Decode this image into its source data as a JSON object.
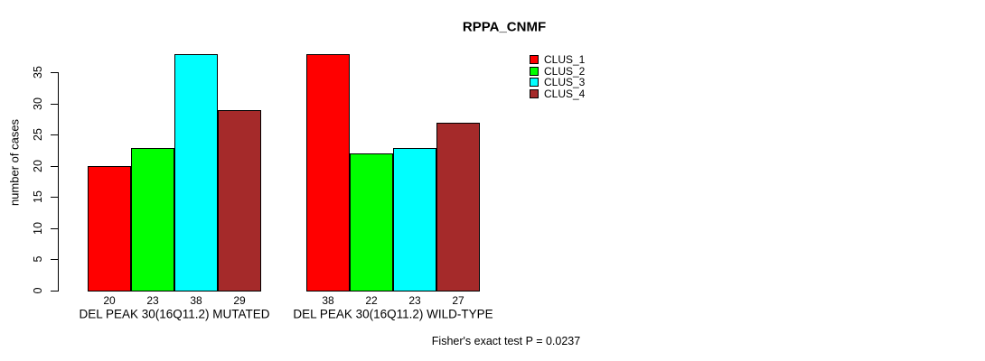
{
  "chart_data": {
    "type": "bar",
    "title": "RPPA_CNMF",
    "ylabel": "number of cases",
    "xlabel": "",
    "ylim": [
      0,
      38
    ],
    "yticks": [
      0,
      5,
      10,
      15,
      20,
      25,
      30,
      35
    ],
    "grid": false,
    "legend_position": "top-right",
    "bar_value_labels_shown": true,
    "categories": [
      "DEL PEAK 30(16Q11.2) MUTATED",
      "DEL PEAK 30(16Q11.2) WILD-TYPE"
    ],
    "series": [
      {
        "name": "CLUS_1",
        "color": "#FF0000",
        "values": [
          20,
          38
        ]
      },
      {
        "name": "CLUS_2",
        "color": "#00FF00",
        "values": [
          23,
          22
        ]
      },
      {
        "name": "CLUS_3",
        "color": "#00FFFF",
        "values": [
          38,
          23
        ]
      },
      {
        "name": "CLUS_4",
        "color": "#A52A2A",
        "values": [
          29,
          27
        ]
      }
    ],
    "footnote": "Fisher's exact test P = 0.0237"
  }
}
